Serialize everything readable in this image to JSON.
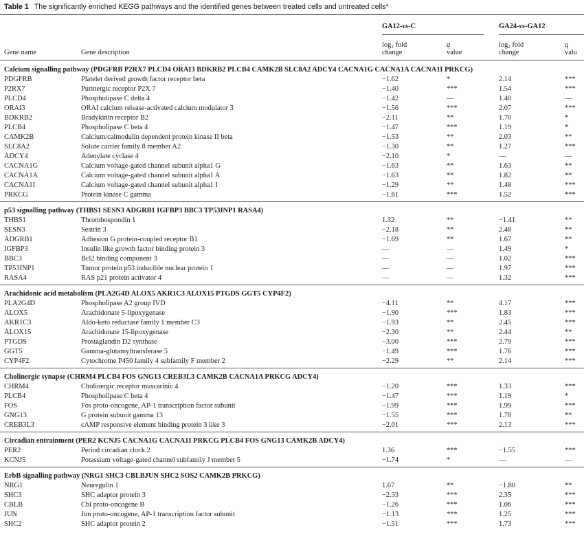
{
  "caption": {
    "label": "Table 1",
    "text": "The significantly enriched KEGG pathways and the identified genes between treated cells and untreated cells*"
  },
  "table": {
    "group1": {
      "label": "GA12-",
      "vs": "vs",
      "suffix": "-C"
    },
    "group2": {
      "label": "GA24-",
      "vs": "vs",
      "suffix": "-GA12"
    },
    "headers": {
      "gene": "Gene name",
      "desc": "Gene description",
      "lfc1_l1": "log₂ fold",
      "lfc1_l2": "change",
      "q1_l1": "q",
      "q1_l2": "value",
      "lfc2_l1": "log₂ fold",
      "lfc2_l2": "change",
      "q2_l1": "q",
      "q2_l2": "valu"
    },
    "rows": [
      {
        "type": "section",
        "title": "Calcium signalling pathway (PDGFRB P2RX7 PLCD4 ORAI3 BDKRB2 PLCB4 CAMK2B SLC8A2 ADCY4 CACNA1G CACNA1A CACNA1I PRKCG)"
      },
      {
        "type": "gene",
        "gene": "PDGFRB",
        "desc": "Platelet derived growth factor receptor beta",
        "lfc1": "−1.62",
        "q1": "*",
        "lfc2": "2.14",
        "q2": "***"
      },
      {
        "type": "gene",
        "gene": "P2RX7",
        "desc": "Purinergic receptor P2X 7",
        "lfc1": "−1.40",
        "q1": "***",
        "lfc2": "1.54",
        "q2": "***"
      },
      {
        "type": "gene",
        "gene": "PLCD4",
        "desc": "Phospholipase C delta 4",
        "lfc1": "−1.42",
        "q1": "—",
        "lfc2": "1.40",
        "q2": "—"
      },
      {
        "type": "gene",
        "gene": "ORAI3",
        "desc": "ORAI calcium release-activated calcium modulator 3",
        "lfc1": "−1.56",
        "q1": "***",
        "lfc2": "2.07",
        "q2": "***"
      },
      {
        "type": "gene",
        "gene": "BDKRB2",
        "desc": "Bradykinin receptor B2",
        "lfc1": "−2.11",
        "q1": "**",
        "lfc2": "1.70",
        "q2": "*"
      },
      {
        "type": "gene",
        "gene": "PLCB4",
        "desc": "Phospholipase C beta 4",
        "lfc1": "−1.47",
        "q1": "***",
        "lfc2": "1.19",
        "q2": "*"
      },
      {
        "type": "gene",
        "gene": "CAMK2B",
        "desc": "Calcium/calmodulin dependent protein kinase II beta",
        "lfc1": "−1.53",
        "q1": "**",
        "lfc2": "2.03",
        "q2": "**"
      },
      {
        "type": "gene",
        "gene": "SLC8A2",
        "desc": "Solute carrier family 8 member A2",
        "lfc1": "−1.30",
        "q1": "**",
        "lfc2": "1.27",
        "q2": "***"
      },
      {
        "type": "gene",
        "gene": "ADCY4",
        "desc": "Adenylate cyclase 4",
        "lfc1": "−2.10",
        "q1": "*",
        "lfc2": "—",
        "q2": "—"
      },
      {
        "type": "gene",
        "gene": "CACNA1G",
        "desc": "Calcium voltage-gated channel subunit alpha1 G",
        "lfc1": "−1.63",
        "q1": "**",
        "lfc2": "1.63",
        "q2": "**"
      },
      {
        "type": "gene",
        "gene": "CACNA1A",
        "desc": "Calcium voltage-gated channel subunit alpha1 A",
        "lfc1": "−1.63",
        "q1": "**",
        "lfc2": "1.82",
        "q2": "**"
      },
      {
        "type": "gene",
        "gene": "CACNA1I",
        "desc": "Calcium voltage-gated channel subunit alpha1 I",
        "lfc1": "−1.29",
        "q1": "**",
        "lfc2": "1.48",
        "q2": "***"
      },
      {
        "type": "gene",
        "gene": "PRKCG",
        "desc": "Protein kinase C gamma",
        "lfc1": "−1.61",
        "q1": "***",
        "lfc2": "1.52",
        "q2": "***"
      },
      {
        "type": "section",
        "title": "p53 signalling pathway (THBS1 SESN3 ADGRB1 IGFBP3 BBC3 TP53INP1 RASA4)"
      },
      {
        "type": "gene",
        "gene": "THBS1",
        "desc": "Thrombospondin 1",
        "lfc1": "1.32",
        "q1": "**",
        "lfc2": "−1.41",
        "q2": "**"
      },
      {
        "type": "gene",
        "gene": "SESN3",
        "desc": "Sestrin 3",
        "lfc1": "−2.18",
        "q1": "**",
        "lfc2": "2.48",
        "q2": "**"
      },
      {
        "type": "gene",
        "gene": "ADGRB1",
        "desc": "Adhesion G protein-coupled receptor B1",
        "lfc1": "−1.69",
        "q1": "**",
        "lfc2": "1.67",
        "q2": "**"
      },
      {
        "type": "gene",
        "gene": "IGFBP3",
        "desc": "Insulin like growth factor binding protein 3",
        "lfc1": "—",
        "q1": "—",
        "lfc2": "1.49",
        "q2": "*"
      },
      {
        "type": "gene",
        "gene": "BBC3",
        "desc": "Bcl2 binding component 3",
        "lfc1": "—",
        "q1": "—",
        "lfc2": "1.02",
        "q2": "***"
      },
      {
        "type": "gene",
        "gene": "TP53INP1",
        "desc": "Tumor protein p53 inducible nuclear protein 1",
        "lfc1": "—",
        "q1": "—",
        "lfc2": "1.97",
        "q2": "***"
      },
      {
        "type": "gene",
        "gene": "RASA4",
        "desc": "RAS p21 protein activator 4",
        "lfc1": "—",
        "q1": "—",
        "lfc2": "1.32",
        "q2": "***"
      },
      {
        "type": "section",
        "title": "Arachidonic acid metabolism (PLA2G4D ALOX5 AKR1C3 ALOX15 PTGDS GGT5 CYP4F2)"
      },
      {
        "type": "gene",
        "gene": "PLA2G4D",
        "desc": "Phospholipase A2 group IVD",
        "lfc1": "−4.11",
        "q1": "**",
        "lfc2": "4.17",
        "q2": "***"
      },
      {
        "type": "gene",
        "gene": "ALOX5",
        "desc": "Arachidonate 5-lipoxygenase",
        "lfc1": "−1.90",
        "q1": "***",
        "lfc2": "1.83",
        "q2": "***"
      },
      {
        "type": "gene",
        "gene": "AKR1C3",
        "desc": "Aldo-keto reductase family 1 member C3",
        "lfc1": "−1.93",
        "q1": "**",
        "lfc2": "2.45",
        "q2": "***"
      },
      {
        "type": "gene",
        "gene": "ALOX15",
        "desc": "Arachidonate 15-lipoxygenase",
        "lfc1": "−2.30",
        "q1": "**",
        "lfc2": "2.44",
        "q2": "**"
      },
      {
        "type": "gene",
        "gene": "PTGDS",
        "desc": "Prostaglandin D2 synthase",
        "lfc1": "−3.00",
        "q1": "***",
        "lfc2": "2.79",
        "q2": "***"
      },
      {
        "type": "gene",
        "gene": "GGT5",
        "desc": "Gamma-glutamyltransferase 5",
        "lfc1": "−1.49",
        "q1": "***",
        "lfc2": "1.76",
        "q2": "***"
      },
      {
        "type": "gene",
        "gene": "CYP4F2",
        "desc": "Cytochrome P450 family 4 subfamily F member 2",
        "lfc1": "−2.29",
        "q1": "**",
        "lfc2": "2.14",
        "q2": "***"
      },
      {
        "type": "section",
        "title": "Cholinergic synapse (CHRM4 PLCB4 FOS GNG13 CREB3L3 CAMK2B CACNA1A PRKCG ADCY4)"
      },
      {
        "type": "gene",
        "gene": "CHRM4",
        "desc": "Cholinergic receptor muscarinic 4",
        "lfc1": "−1.20",
        "q1": "***",
        "lfc2": "1.33",
        "q2": "***"
      },
      {
        "type": "gene",
        "gene": "PLCB4",
        "desc": "Phospholipase C beta 4",
        "lfc1": "−1.47",
        "q1": "***",
        "lfc2": "1.19",
        "q2": "*"
      },
      {
        "type": "gene",
        "gene": "FOS",
        "desc": "Fos proto-oncogene, AP-1 transcription factor subunit",
        "lfc1": "−1.99",
        "q1": "***",
        "lfc2": "1.99",
        "q2": "***"
      },
      {
        "type": "gene",
        "gene": "GNG13",
        "desc": "G protein subunit gamma 13",
        "lfc1": "−1.55",
        "q1": "***",
        "lfc2": "1.78",
        "q2": "**"
      },
      {
        "type": "gene",
        "gene": "CREB3L3",
        "desc": "cAMP responsive element binding protein 3 like 3",
        "lfc1": "−2.01",
        "q1": "***",
        "lfc2": "2.13",
        "q2": "***"
      },
      {
        "type": "section",
        "title": "Circadian entrainment (PER2 KCNJ5 CACNA1G CACNA1I PRKCG PLCB4 FOS GNG13 CAMK2B ADCY4)"
      },
      {
        "type": "gene",
        "gene": "PER2",
        "desc": "Period circadian clock 2",
        "lfc1": "1.36",
        "q1": "***",
        "lfc2": "−1.55",
        "q2": "***"
      },
      {
        "type": "gene",
        "gene": "KCNJ5",
        "desc": "Potassium voltage-gated channel subfamily J member 5",
        "lfc1": "−1.74",
        "q1": "*",
        "lfc2": "—",
        "q2": "—"
      },
      {
        "type": "section",
        "title": "ErbB signalling pathway (NRG1 SHC3 CBLBJUN SHC2 SOS2 CAMK2B PRKCG)"
      },
      {
        "type": "gene",
        "gene": "NRG1",
        "desc": "Neuregulin 1",
        "lfc1": "1.67",
        "q1": "**",
        "lfc2": "−1.80",
        "q2": "**"
      },
      {
        "type": "gene",
        "gene": "SHC3",
        "desc": "SHC adaptor protein 3",
        "lfc1": "−2.33",
        "q1": "***",
        "lfc2": "2.35",
        "q2": "***"
      },
      {
        "type": "gene",
        "gene": "CBLB",
        "desc": "Cbl proto-oncogene B",
        "lfc1": "−1.26",
        "q1": "***",
        "lfc2": "1.06",
        "q2": "***"
      },
      {
        "type": "gene",
        "gene": "JUN",
        "desc": "Jun proto-oncogene, AP-1 transcription factor subunit",
        "lfc1": "−1.13",
        "q1": "***",
        "lfc2": "1.25",
        "q2": "***"
      },
      {
        "type": "gene",
        "gene": "SHC2",
        "desc": "SHC adaptor protein 2",
        "lfc1": "−1.51",
        "q1": "***",
        "lfc2": "1.73",
        "q2": "***"
      }
    ]
  }
}
